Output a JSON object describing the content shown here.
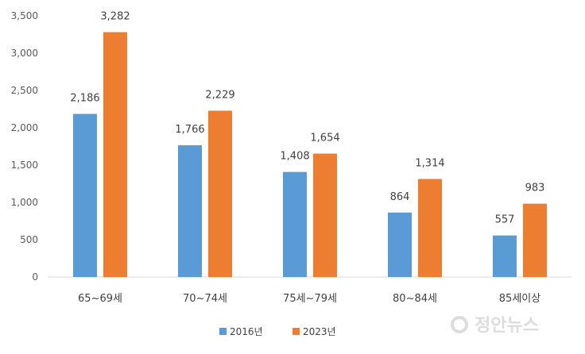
{
  "chart_data": {
    "type": "bar",
    "categories": [
      "65~69세",
      "70~74세",
      "75세~79세",
      "80~84세",
      "85세이상"
    ],
    "series": [
      {
        "name": "2016년",
        "color": "#5b9bd5",
        "values": [
          2186,
          1766,
          1408,
          864,
          557
        ]
      },
      {
        "name": "2023년",
        "color": "#ed7d31",
        "values": [
          3282,
          2229,
          1654,
          1314,
          983
        ]
      }
    ],
    "value_labels": [
      [
        "2,186",
        "1,766",
        "1,408",
        "864",
        "557"
      ],
      [
        "3,282",
        "2,229",
        "1,654",
        "1,314",
        "983"
      ]
    ],
    "yticks": [
      "0",
      "500",
      "1,000",
      "1,500",
      "2,000",
      "2,500",
      "3,000",
      "3,500"
    ],
    "ylim": [
      0,
      3500
    ],
    "grid": false,
    "legend_position": "bottom",
    "title": "",
    "xlabel": "",
    "ylabel": ""
  },
  "watermark": {
    "text": "정안뉴스",
    "icon": "news-logo-icon"
  }
}
